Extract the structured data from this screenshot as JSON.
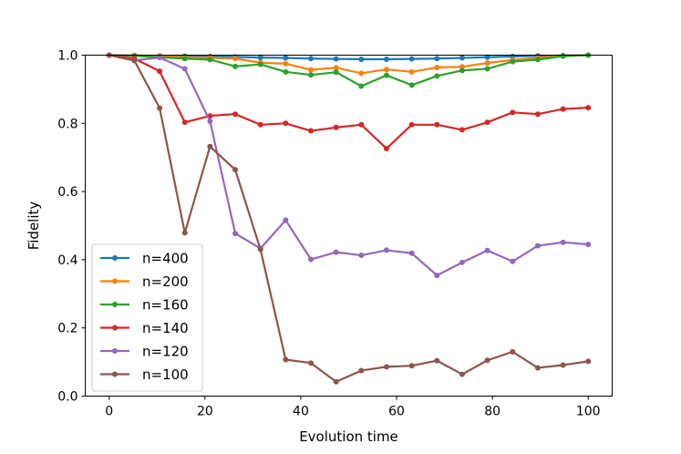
{
  "chart_data": {
    "type": "line",
    "title": "",
    "xlabel": "Evolution time",
    "ylabel": "Fidelity",
    "xlim": [
      -5,
      105
    ],
    "ylim": [
      0,
      1
    ],
    "xticks": [
      0,
      20,
      40,
      60,
      80,
      100
    ],
    "yticks": [
      0.0,
      0.2,
      0.4,
      0.6,
      0.8,
      1.0
    ],
    "xtick_labels": [
      "0",
      "20",
      "40",
      "60",
      "80",
      "100"
    ],
    "ytick_labels": [
      "0.0",
      "0.2",
      "0.4",
      "0.6",
      "0.8",
      "1.0"
    ],
    "grid": false,
    "legend_position": "lower-left",
    "x": [
      0,
      5.26,
      10.53,
      15.79,
      21.05,
      26.32,
      31.58,
      36.84,
      42.11,
      47.37,
      52.63,
      57.89,
      63.16,
      68.42,
      73.68,
      78.95,
      84.21,
      89.47,
      94.74,
      100
    ],
    "series": [
      {
        "name": "n=400",
        "color": "#1f77b4",
        "values": [
          1.0,
          0.999,
          0.998,
          0.997,
          0.996,
          0.995,
          0.993,
          0.992,
          0.99,
          0.989,
          0.988,
          0.988,
          0.989,
          0.99,
          0.992,
          0.994,
          0.996,
          0.998,
          0.999,
          1.0
        ]
      },
      {
        "name": "n=200",
        "color": "#ff7f0e",
        "values": [
          1.0,
          0.999,
          0.997,
          0.994,
          0.992,
          0.99,
          0.978,
          0.975,
          0.957,
          0.963,
          0.947,
          0.958,
          0.951,
          0.964,
          0.966,
          0.977,
          0.986,
          0.992,
          0.998,
          1.0
        ]
      },
      {
        "name": "n=160",
        "color": "#2ca02c",
        "values": [
          1.0,
          0.998,
          0.994,
          0.99,
          0.987,
          0.967,
          0.973,
          0.951,
          0.942,
          0.95,
          0.909,
          0.941,
          0.912,
          0.939,
          0.955,
          0.96,
          0.981,
          0.987,
          0.997,
          1.0
        ]
      },
      {
        "name": "n=140",
        "color": "#d62728",
        "values": [
          1.0,
          0.99,
          0.953,
          0.803,
          0.822,
          0.827,
          0.796,
          0.8,
          0.778,
          0.788,
          0.796,
          0.726,
          0.796,
          0.796,
          0.781,
          0.803,
          0.832,
          0.827,
          0.842,
          0.846
        ]
      },
      {
        "name": "n=120",
        "color": "#9467bd",
        "values": [
          1.0,
          0.985,
          0.993,
          0.96,
          0.806,
          0.477,
          0.433,
          0.516,
          0.401,
          0.422,
          0.413,
          0.428,
          0.419,
          0.354,
          0.392,
          0.427,
          0.395,
          0.441,
          0.451,
          0.445
        ]
      },
      {
        "name": "n=100",
        "color": "#8c564b",
        "values": [
          1.0,
          0.984,
          0.845,
          0.479,
          0.732,
          0.664,
          0.43,
          0.107,
          0.097,
          0.042,
          0.075,
          0.086,
          0.089,
          0.104,
          0.064,
          0.105,
          0.13,
          0.083,
          0.091,
          0.102
        ]
      }
    ]
  }
}
